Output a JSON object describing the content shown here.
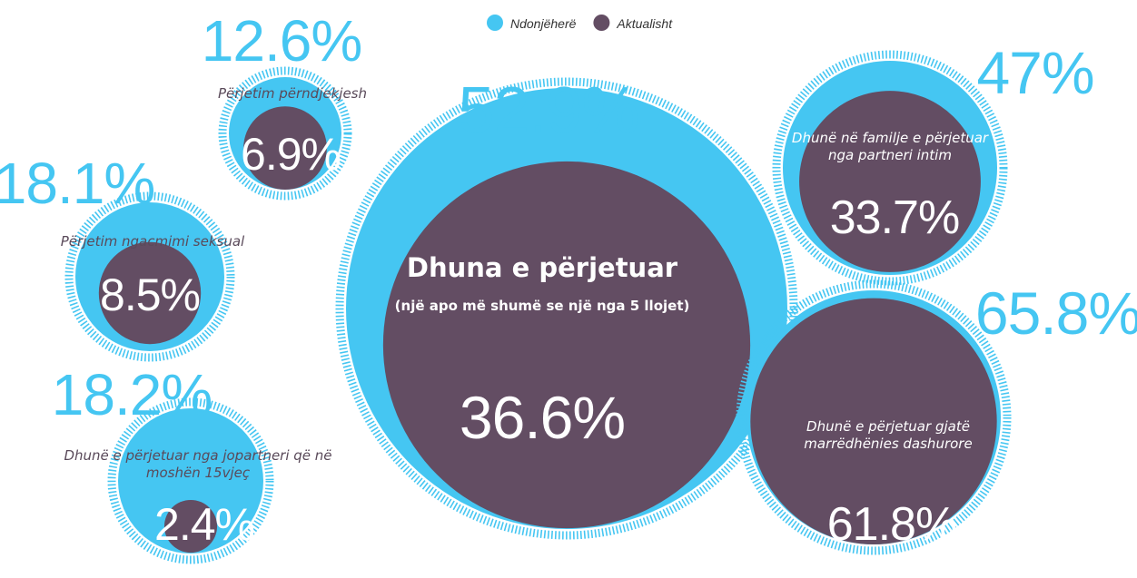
{
  "chart_data": {
    "type": "nested-circles",
    "categories": [
      "Dhuna e përjetuar",
      "Përjetim përndjekjesh",
      "Përjetim ngacmimi seksual",
      "Dhunë e përjetuar nga jopartneri që në moshën 15vjeç",
      "Dhunë në familje e përjetuar nga partneri intim",
      "Dhunë e përjetuar gjatë marrëdhënies dashurore"
    ],
    "subtitle": "(një apo më shumë se një nga 5 llojet)",
    "series": [
      {
        "name": "Ndonjëherë",
        "color": "#45c6f2",
        "values": [
          52.9,
          12.6,
          18.1,
          18.2,
          47,
          65.8
        ],
        "value_labels": [
          "52.9%",
          "12.6%",
          "18.1%",
          "18.2%",
          "47%",
          "65.8%"
        ]
      },
      {
        "name": "Aktualisht",
        "color": "#634d63",
        "values": [
          36.6,
          6.9,
          8.5,
          2.4,
          33.7,
          61.8
        ],
        "value_labels": [
          "36.6%",
          "6.9%",
          "8.5%",
          "2.4%",
          "33.7%",
          "61.8%"
        ]
      }
    ]
  }
}
